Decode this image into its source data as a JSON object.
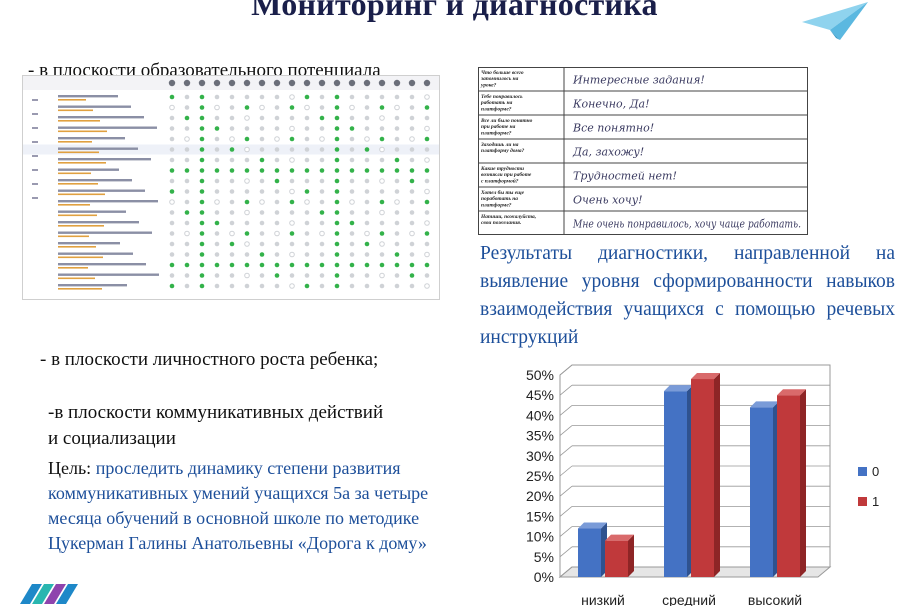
{
  "title": "Мониторинг и диагностика",
  "bullet_1": "- в плоскости образовательного потенциала",
  "bullet_2": "- в плоскости личностного роста ребенка;",
  "bullet_3_line1": "-в плоскости коммуникативных действий",
  "bullet_3_line2": "и социализации",
  "goal_label": "Цель: ",
  "goal_text": "проследить динамику степени развития коммуникативных умений учащихся 5а за четыре месяца обучений в основной школе по методике Цукерман Галины Анатольевны «Дорога к дому»",
  "results_caption": "Результаты диагностики, направленной на выявление уровня сформированности навыков взаимодействия учащихся с помощью речевых инструкций",
  "survey": [
    {
      "question": "Что больше всего запомнилось на уроке?",
      "answer": "Интересные задания!"
    },
    {
      "question": "Тебе понравилось работать на платформе?",
      "answer": "Конечно, Да!"
    },
    {
      "question": "Все ли было понятно при работе на платформе?",
      "answer": "Все понятно!"
    },
    {
      "question": "Заходишь ли на платформу дома?",
      "answer": "Да, захожу!"
    },
    {
      "question": "Какие трудности возникли при работе с платформой?",
      "answer": "Трудностей нет!"
    },
    {
      "question": "Хотел бы ты еще поработать на платформе?",
      "answer": "Очень хочу!"
    },
    {
      "question": "Напиши, пожалуйста, свои пожелания.",
      "answer": "Мне очень понравилось, хочу чаще работать."
    }
  ],
  "colors": {
    "series_0": "#4472c4",
    "series_1": "#c0393b",
    "caption_blue": "#1d4f9a",
    "title": "#1a1f4a"
  },
  "chart_data": {
    "type": "bar",
    "categories": [
      "низкий",
      "средний",
      "высокий"
    ],
    "series": [
      {
        "name": "0",
        "values": [
          12,
          46,
          42
        ]
      },
      {
        "name": "1",
        "values": [
          9,
          49,
          45
        ]
      }
    ],
    "ylim": [
      0,
      50
    ],
    "y_ticks": [
      "0%",
      "5%",
      "10%",
      "15%",
      "20%",
      "25%",
      "30%",
      "35%",
      "40%",
      "45%",
      "50%"
    ],
    "grid": true,
    "legend": "right"
  }
}
